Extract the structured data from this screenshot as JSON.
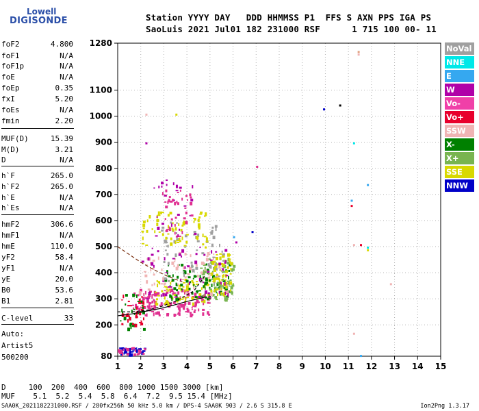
{
  "logo": {
    "top": "Lowell",
    "bottom": "DIGISONDE"
  },
  "header": {
    "line1": "Station YYYY DAY   DDD HHMMSS P1  FFS S AXN PPS IGA PS",
    "line2": "SaoLuis 2021 Jul01 182 231000 RSF      1 715 100 00- 11"
  },
  "params": [
    {
      "name": "foF2",
      "value": "4.800"
    },
    {
      "name": "foF1",
      "value": "N/A"
    },
    {
      "name": "foF1p",
      "value": "N/A"
    },
    {
      "name": "foE",
      "value": "N/A"
    },
    {
      "name": "foEp",
      "value": "0.35"
    },
    {
      "name": "fxI",
      "value": "5.20"
    },
    {
      "name": "foEs",
      "value": "N/A"
    },
    {
      "name": "fmin",
      "value": "2.20"
    },
    {
      "name": "MUF(D)",
      "value": "15.39"
    },
    {
      "name": "M(D)",
      "value": "3.21"
    },
    {
      "name": "D",
      "value": "N/A"
    },
    {
      "name": "h`F",
      "value": "265.0"
    },
    {
      "name": "h`F2",
      "value": "265.0"
    },
    {
      "name": "h`E",
      "value": "N/A"
    },
    {
      "name": "h`Es",
      "value": "N/A"
    },
    {
      "name": "hmF2",
      "value": "306.6"
    },
    {
      "name": "hmF1",
      "value": "N/A"
    },
    {
      "name": "hmE",
      "value": "110.0"
    },
    {
      "name": "yF2",
      "value": "58.4"
    },
    {
      "name": "yF1",
      "value": "N/A"
    },
    {
      "name": "yE",
      "value": "20.0"
    },
    {
      "name": "B0",
      "value": "53.6"
    },
    {
      "name": "B1",
      "value": "2.81"
    },
    {
      "name": "C-level",
      "value": "33"
    }
  ],
  "autoscaling": {
    "line1": "Auto:",
    "line2": "Artist5",
    "line3": "500200"
  },
  "distance_table": {
    "d_row": "D     100  200  400  600  800 1000 1500 3000 [km]",
    "muf_row": "MUF    5.1  5.2  5.4  5.8  6.4  7.2  9.5 15.4 [MHz]"
  },
  "footer": {
    "text": "SAA0K_2021182231000.RSF / 280fx256h 50 kHz 5.0 km / DPS-4 SAA0K 903 / 2.6 S 315.8 E",
    "version": "Ion2Png 1.3.17"
  },
  "legend": [
    {
      "label": "NoVal",
      "color": "#a0a0a0"
    },
    {
      "label": "NNE",
      "color": "#00e8e8"
    },
    {
      "label": "E",
      "color": "#35a8f0"
    },
    {
      "label": "W",
      "color": "#b000a8"
    },
    {
      "label": "Vo-",
      "color": "#f040a8"
    },
    {
      "label": "Vo+",
      "color": "#e8002c"
    },
    {
      "label": "SSW",
      "color": "#f0b4b4"
    },
    {
      "label": "X-",
      "color": "#008000"
    },
    {
      "label": "X+",
      "color": "#78b450"
    },
    {
      "label": "SSE",
      "color": "#d8d800"
    },
    {
      "label": "NNW",
      "color": "#0000c8"
    }
  ],
  "chart_data": {
    "type": "scatter",
    "xlabel": "",
    "ylabel": "",
    "xlim": [
      1,
      15
    ],
    "ylim": [
      80,
      1280
    ],
    "x_ticks": [
      1,
      2,
      3,
      4,
      5,
      6,
      7,
      8,
      9,
      10,
      11,
      12,
      13,
      14,
      15
    ],
    "y_ticks": [
      80,
      200,
      300,
      400,
      500,
      600,
      700,
      800,
      900,
      1000,
      1100,
      1280
    ],
    "grid": true,
    "legend_position": "right",
    "echo_clusters": [
      {
        "name": "F-trace",
        "color": "#e03090",
        "x_range": [
          1.6,
          5.0
        ],
        "y_range": [
          240,
          340
        ],
        "n": 160
      },
      {
        "name": "F-trace",
        "color": "#d8d800",
        "x_range": [
          2.6,
          5.0
        ],
        "y_range": [
          280,
          380
        ],
        "n": 70
      },
      {
        "name": "F-trace",
        "color": "#008000",
        "x_range": [
          3.0,
          5.9
        ],
        "y_range": [
          300,
          440
        ],
        "n": 90
      },
      {
        "name": "F-trace",
        "color": "#78b450",
        "x_range": [
          4.5,
          6.0
        ],
        "y_range": [
          300,
          460
        ],
        "n": 80
      },
      {
        "name": "F-trace",
        "color": "#d8d800",
        "x_range": [
          5.0,
          5.9
        ],
        "y_range": [
          320,
          480
        ],
        "n": 70
      },
      {
        "name": "F-trace",
        "color": "#f0b4b4",
        "x_range": [
          1.9,
          5.8
        ],
        "y_range": [
          320,
          480
        ],
        "n": 70
      },
      {
        "name": "F-trace",
        "color": "#b000a8",
        "x_range": [
          2.0,
          5.8
        ],
        "y_range": [
          300,
          500
        ],
        "n": 50
      },
      {
        "name": "F-trace",
        "color": "#a0a0a0",
        "x_range": [
          2.8,
          5.6
        ],
        "y_range": [
          350,
          600
        ],
        "n": 60
      },
      {
        "name": "2F-trace",
        "color": "#d8d800",
        "x_range": [
          2.0,
          4.9
        ],
        "y_range": [
          500,
          640
        ],
        "n": 70
      },
      {
        "name": "2F-trace",
        "color": "#e03090",
        "x_range": [
          2.8,
          4.2
        ],
        "y_range": [
          540,
          720
        ],
        "n": 40
      },
      {
        "name": "2F-trace",
        "color": "#b000a8",
        "x_range": [
          2.5,
          4.5
        ],
        "y_range": [
          540,
          760
        ],
        "n": 25
      },
      {
        "name": "sporadic",
        "color": "#0000c8",
        "x_range": [
          1.0,
          2.2
        ],
        "y_range": [
          90,
          115
        ],
        "n": 35
      },
      {
        "name": "sporadic",
        "color": "#e03090",
        "x_range": [
          1.0,
          2.2
        ],
        "y_range": [
          90,
          115
        ],
        "n": 25
      },
      {
        "name": "sporadic",
        "color": "#008000",
        "x_range": [
          1.1,
          2.1
        ],
        "y_range": [
          180,
          320
        ],
        "n": 30
      },
      {
        "name": "sporadic",
        "color": "#e8002c",
        "x_range": [
          1.1,
          2.1
        ],
        "y_range": [
          200,
          340
        ],
        "n": 30
      }
    ],
    "isolated_points": [
      {
        "x": 2.2,
        "y": 1010,
        "color": "#f0b4b4"
      },
      {
        "x": 2.2,
        "y": 900,
        "color": "#b000a8"
      },
      {
        "x": 7.0,
        "y": 810,
        "color": "#e03090"
      },
      {
        "x": 6.8,
        "y": 560,
        "color": "#0000c8"
      },
      {
        "x": 9.9,
        "y": 1030,
        "color": "#0000c8"
      },
      {
        "x": 10.6,
        "y": 1045,
        "color": "#000000"
      },
      {
        "x": 11.2,
        "y": 900,
        "color": "#00e8e8"
      },
      {
        "x": 11.1,
        "y": 680,
        "color": "#35a8f0"
      },
      {
        "x": 11.1,
        "y": 660,
        "color": "#e8002c"
      },
      {
        "x": 11.8,
        "y": 740,
        "color": "#35a8f0"
      },
      {
        "x": 11.4,
        "y": 1240,
        "color": "#f0b4b4"
      },
      {
        "x": 11.4,
        "y": 1250,
        "color": "#e0a080"
      },
      {
        "x": 11.8,
        "y": 490,
        "color": "#d8d800"
      },
      {
        "x": 11.8,
        "y": 500,
        "color": "#00e8e8"
      },
      {
        "x": 11.5,
        "y": 510,
        "color": "#e8002c"
      },
      {
        "x": 11.2,
        "y": 510,
        "color": "#f0b4b4"
      },
      {
        "x": 12.8,
        "y": 360,
        "color": "#f0b4b4"
      },
      {
        "x": 11.5,
        "y": 85,
        "color": "#35a8f0"
      },
      {
        "x": 11.2,
        "y": 170,
        "color": "#f0b4b4"
      },
      {
        "x": 3.5,
        "y": 1010,
        "color": "#d8d800"
      },
      {
        "x": 6.1,
        "y": 520,
        "color": "#b000a8"
      },
      {
        "x": 6.0,
        "y": 540,
        "color": "#35a8f0"
      }
    ],
    "profile_curve": {
      "x": [
        1.0,
        1.6,
        2.2,
        2.8,
        3.4,
        4.0,
        4.5,
        4.8
      ],
      "y": [
        235,
        242,
        252,
        262,
        275,
        290,
        300,
        307
      ]
    },
    "dashed_curve": {
      "x": [
        1.0,
        1.5,
        2.0,
        2.6,
        3.2,
        3.8
      ],
      "y": [
        500,
        470,
        440,
        410,
        385,
        365
      ]
    },
    "dashed_curve2": {
      "x": [
        1.0,
        1.6,
        2.2,
        2.8,
        3.5,
        4.3,
        4.8
      ],
      "y": [
        250,
        250,
        255,
        268,
        290,
        330,
        390
      ]
    }
  }
}
